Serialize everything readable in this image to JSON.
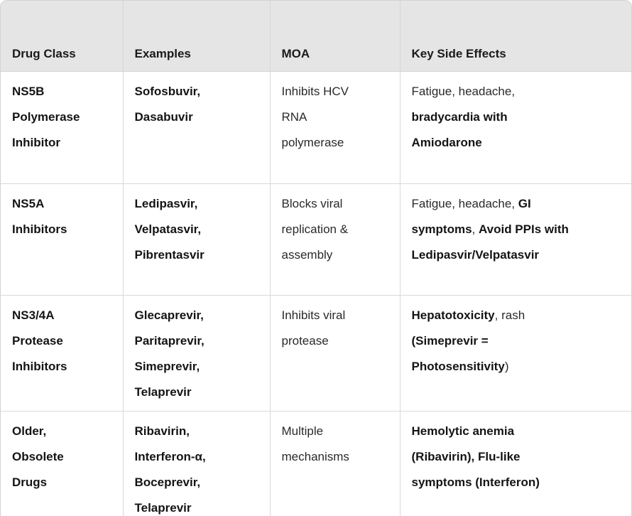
{
  "colors": {
    "header_bg": "#e5e5e6",
    "cell_border": "#d9d9d9",
    "outer_border": "#d2d2d2",
    "bold_text": "#141414",
    "normal_text": "#2a2a2a",
    "scrollbar_thumb": "#8e8e8e"
  },
  "table": {
    "column_keys": [
      "drug-class",
      "examples",
      "moa",
      "key-side-effects"
    ],
    "columns": [
      "Drug Class",
      "Examples",
      "MOA",
      "Key Side Effects"
    ],
    "rows": [
      {
        "cells": [
          [
            {
              "text": "NS5B\nPolymerase\nInhibitor",
              "bold": true
            }
          ],
          [
            {
              "text": "Sofosbuvir,\nDasabuvir",
              "bold": true
            }
          ],
          [
            {
              "text": "Inhibits HCV\nRNA\npolymerase",
              "bold": false
            }
          ],
          [
            {
              "text": "Fatigue, headache,\n",
              "bold": false
            },
            {
              "text": "bradycardia with\nAmiodarone",
              "bold": true
            }
          ]
        ]
      },
      {
        "cells": [
          [
            {
              "text": "NS5A\nInhibitors",
              "bold": true
            }
          ],
          [
            {
              "text": "Ledipasvir,\nVelpatasvir,\nPibrentasvir",
              "bold": true
            }
          ],
          [
            {
              "text": "Blocks viral\nreplication &\nassembly",
              "bold": false
            }
          ],
          [
            {
              "text": "Fatigue, headache, ",
              "bold": false
            },
            {
              "text": "GI\nsymptoms",
              "bold": true
            },
            {
              "text": ", ",
              "bold": false
            },
            {
              "text": "Avoid PPIs with\nLedipasvir/Velpatasvir",
              "bold": true
            }
          ]
        ]
      },
      {
        "cells": [
          [
            {
              "text": "NS3/4A\nProtease\nInhibitors",
              "bold": true
            }
          ],
          [
            {
              "text": "Glecaprevir,\nParitaprevir,\nSimeprevir,\nTelaprevir",
              "bold": true
            }
          ],
          [
            {
              "text": "Inhibits viral\nprotease",
              "bold": false
            }
          ],
          [
            {
              "text": "Hepatotoxicity",
              "bold": true
            },
            {
              "text": ", rash\n",
              "bold": false
            },
            {
              "text": "(Simeprevir =\nPhotosensitivity",
              "bold": true
            },
            {
              "text": ")",
              "bold": false
            }
          ]
        ]
      },
      {
        "cells": [
          [
            {
              "text": "Older,\nObsolete\nDrugs",
              "bold": true
            }
          ],
          [
            {
              "text": "Ribavirin,\nInterferon-α,\nBoceprevir,\nTelaprevir",
              "bold": true
            }
          ],
          [
            {
              "text": "Multiple\nmechanisms",
              "bold": false
            }
          ],
          [
            {
              "text": "Hemolytic anemia\n(Ribavirin), Flu-like\nsymptoms (Interferon)",
              "bold": true
            }
          ]
        ]
      }
    ]
  }
}
